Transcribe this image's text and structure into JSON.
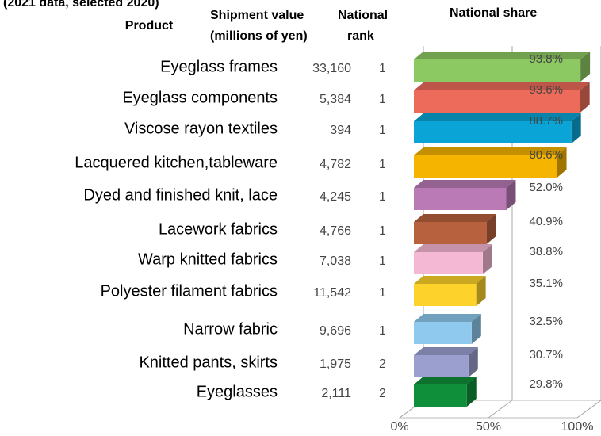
{
  "chart_data": {
    "type": "bar3d",
    "title": "(2021 data, selected 2020)",
    "headers": {
      "product": "Product",
      "shipment_1": "Shipment value",
      "shipment_2": "(millions of yen)",
      "rank_1": "National",
      "rank_2": "rank",
      "share": "National share"
    },
    "categories": [
      "Eyeglass frames",
      "Eyeglass components",
      "Viscose rayon textiles",
      "Lacquered kitchen,tableware",
      "Dyed and finished knit, lace",
      "Lacework fabrics",
      "Warp knitted fabrics",
      "Polyester filament fabrics",
      "Narrow fabric",
      "Knitted pants, skirts",
      "Eyeglasses"
    ],
    "shipment": [
      {
        "value": 33160,
        "label": "33,160"
      },
      {
        "value": 5384,
        "label": "5,384"
      },
      {
        "value": 394,
        "label": "394"
      },
      {
        "value": 4782,
        "label": "4,782"
      },
      {
        "value": 4245,
        "label": "4,245"
      },
      {
        "value": 4766,
        "label": "4,766"
      },
      {
        "value": 7038,
        "label": "7,038"
      },
      {
        "value": 11542,
        "label": "11,542"
      },
      {
        "value": 9696,
        "label": "9,696"
      },
      {
        "value": 1975,
        "label": "1,975"
      },
      {
        "value": 2111,
        "label": "2,111"
      }
    ],
    "rank": [
      1,
      1,
      1,
      1,
      1,
      1,
      1,
      1,
      1,
      2,
      2
    ],
    "values": [
      93.8,
      93.6,
      88.7,
      80.6,
      52.0,
      40.9,
      38.8,
      35.1,
      32.5,
      30.7,
      29.8
    ],
    "value_labels": [
      "93.8%",
      "93.6%",
      "88.7%",
      "80.6%",
      "52.0%",
      "40.9%",
      "38.8%",
      "35.1%",
      "32.5%",
      "30.7%",
      "29.8%"
    ],
    "colors": [
      "#8dc963",
      "#ec6b5a",
      "#0aa5d6",
      "#f5b400",
      "#b97ab5",
      "#b8613f",
      "#f5b8d4",
      "#fcd22b",
      "#8fc9ee",
      "#9b9fcf",
      "#0f8f3a"
    ],
    "xlim": [
      0,
      100
    ],
    "xticks": [
      {
        "value": 0,
        "label": "0%"
      },
      {
        "value": 50,
        "label": "50%"
      },
      {
        "value": 100,
        "label": "100%"
      }
    ],
    "grid": true
  }
}
